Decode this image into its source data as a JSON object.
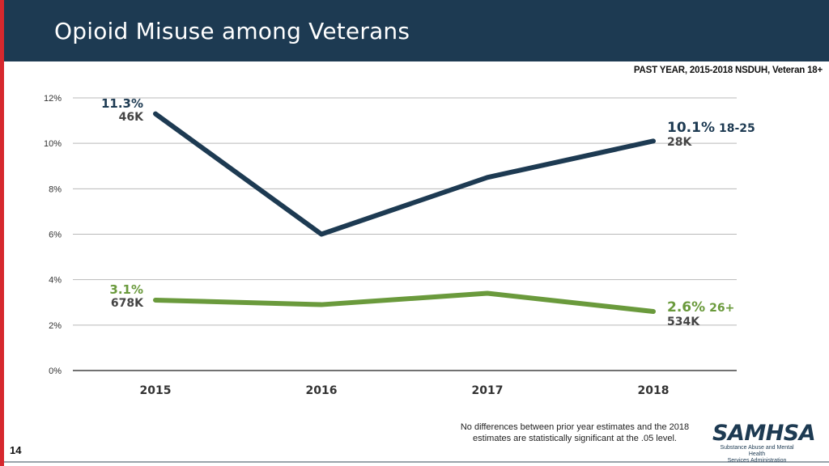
{
  "header": {
    "title": "Opioid Misuse among Veterans"
  },
  "subtitle": "PAST YEAR, 2015-2018 NSDUH, Veteran 18+",
  "footer": {
    "note_line1": "No differences between prior year estimates and the 2018",
    "note_line2": "estimates are statistically significant at the .05 level.",
    "page_number": "14",
    "logo_name": "SAMHSA",
    "logo_line1": "Substance Abuse and Mental Health",
    "logo_line2": "Services Administration"
  },
  "colors": {
    "header_bg": "#1d3a52",
    "accent_red": "#d6282e",
    "series_18_25": "#1d3a52",
    "series_26_plus": "#6a9a3c"
  },
  "chart_data": {
    "type": "line",
    "title": "Opioid Misuse among Veterans",
    "xlabel": "",
    "ylabel": "",
    "categories": [
      "2015",
      "2016",
      "2017",
      "2018"
    ],
    "ylim": [
      0,
      12
    ],
    "yticks": [
      0,
      2,
      4,
      6,
      8,
      10,
      12
    ],
    "ytick_labels": [
      "0%",
      "2%",
      "4%",
      "6%",
      "8%",
      "10%",
      "12%"
    ],
    "grid": true,
    "series": [
      {
        "name": "18-25",
        "color": "#1d3a52",
        "values": [
          11.3,
          6.0,
          8.5,
          10.1
        ],
        "start_label": {
          "pct": "11.3%",
          "count": "46K"
        },
        "end_label": {
          "pct": "10.1%",
          "group": "18-25",
          "count": "28K"
        }
      },
      {
        "name": "26+",
        "color": "#6a9a3c",
        "values": [
          3.1,
          2.9,
          3.4,
          2.6
        ],
        "start_label": {
          "pct": "3.1%",
          "count": "678K"
        },
        "end_label": {
          "pct": "2.6%",
          "group": "26+",
          "count": "534K"
        }
      }
    ]
  }
}
